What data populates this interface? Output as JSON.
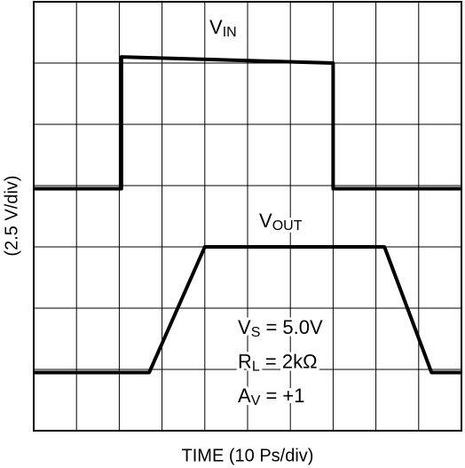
{
  "chart_data": {
    "type": "line",
    "xlabel": "TIME (10 Ps/div)",
    "ylabel": "(2.5 V/div)",
    "xlim": [
      0,
      10
    ],
    "ylim": [
      0,
      7
    ],
    "xticks": [
      0,
      1,
      2,
      3,
      4,
      5,
      6,
      7,
      8,
      9,
      10
    ],
    "yticks": [
      0,
      1,
      2,
      3,
      4,
      5,
      6,
      7
    ],
    "grid": true,
    "series": [
      {
        "label": {
          "base": "V",
          "sub": "IN"
        },
        "color": "#000000",
        "x": [
          0,
          2.05,
          2.05,
          7.0,
          7.0,
          10
        ],
        "values": [
          3.95,
          3.95,
          6.1,
          6.0,
          3.95,
          3.95
        ]
      },
      {
        "label": {
          "base": "V",
          "sub": "OUT"
        },
        "color": "#000000",
        "x": [
          0,
          2.7,
          4.0,
          8.2,
          9.3,
          10
        ],
        "values": [
          0.95,
          0.95,
          3.0,
          3.0,
          0.95,
          0.95
        ]
      }
    ],
    "annotations": [
      {
        "base": "V",
        "sub": "S",
        "rest": " = 5.0V"
      },
      {
        "base": "R",
        "sub": "L",
        "rest": " = 2kΩ"
      },
      {
        "base": "A",
        "sub": "V",
        "rest": " = +1"
      }
    ]
  }
}
